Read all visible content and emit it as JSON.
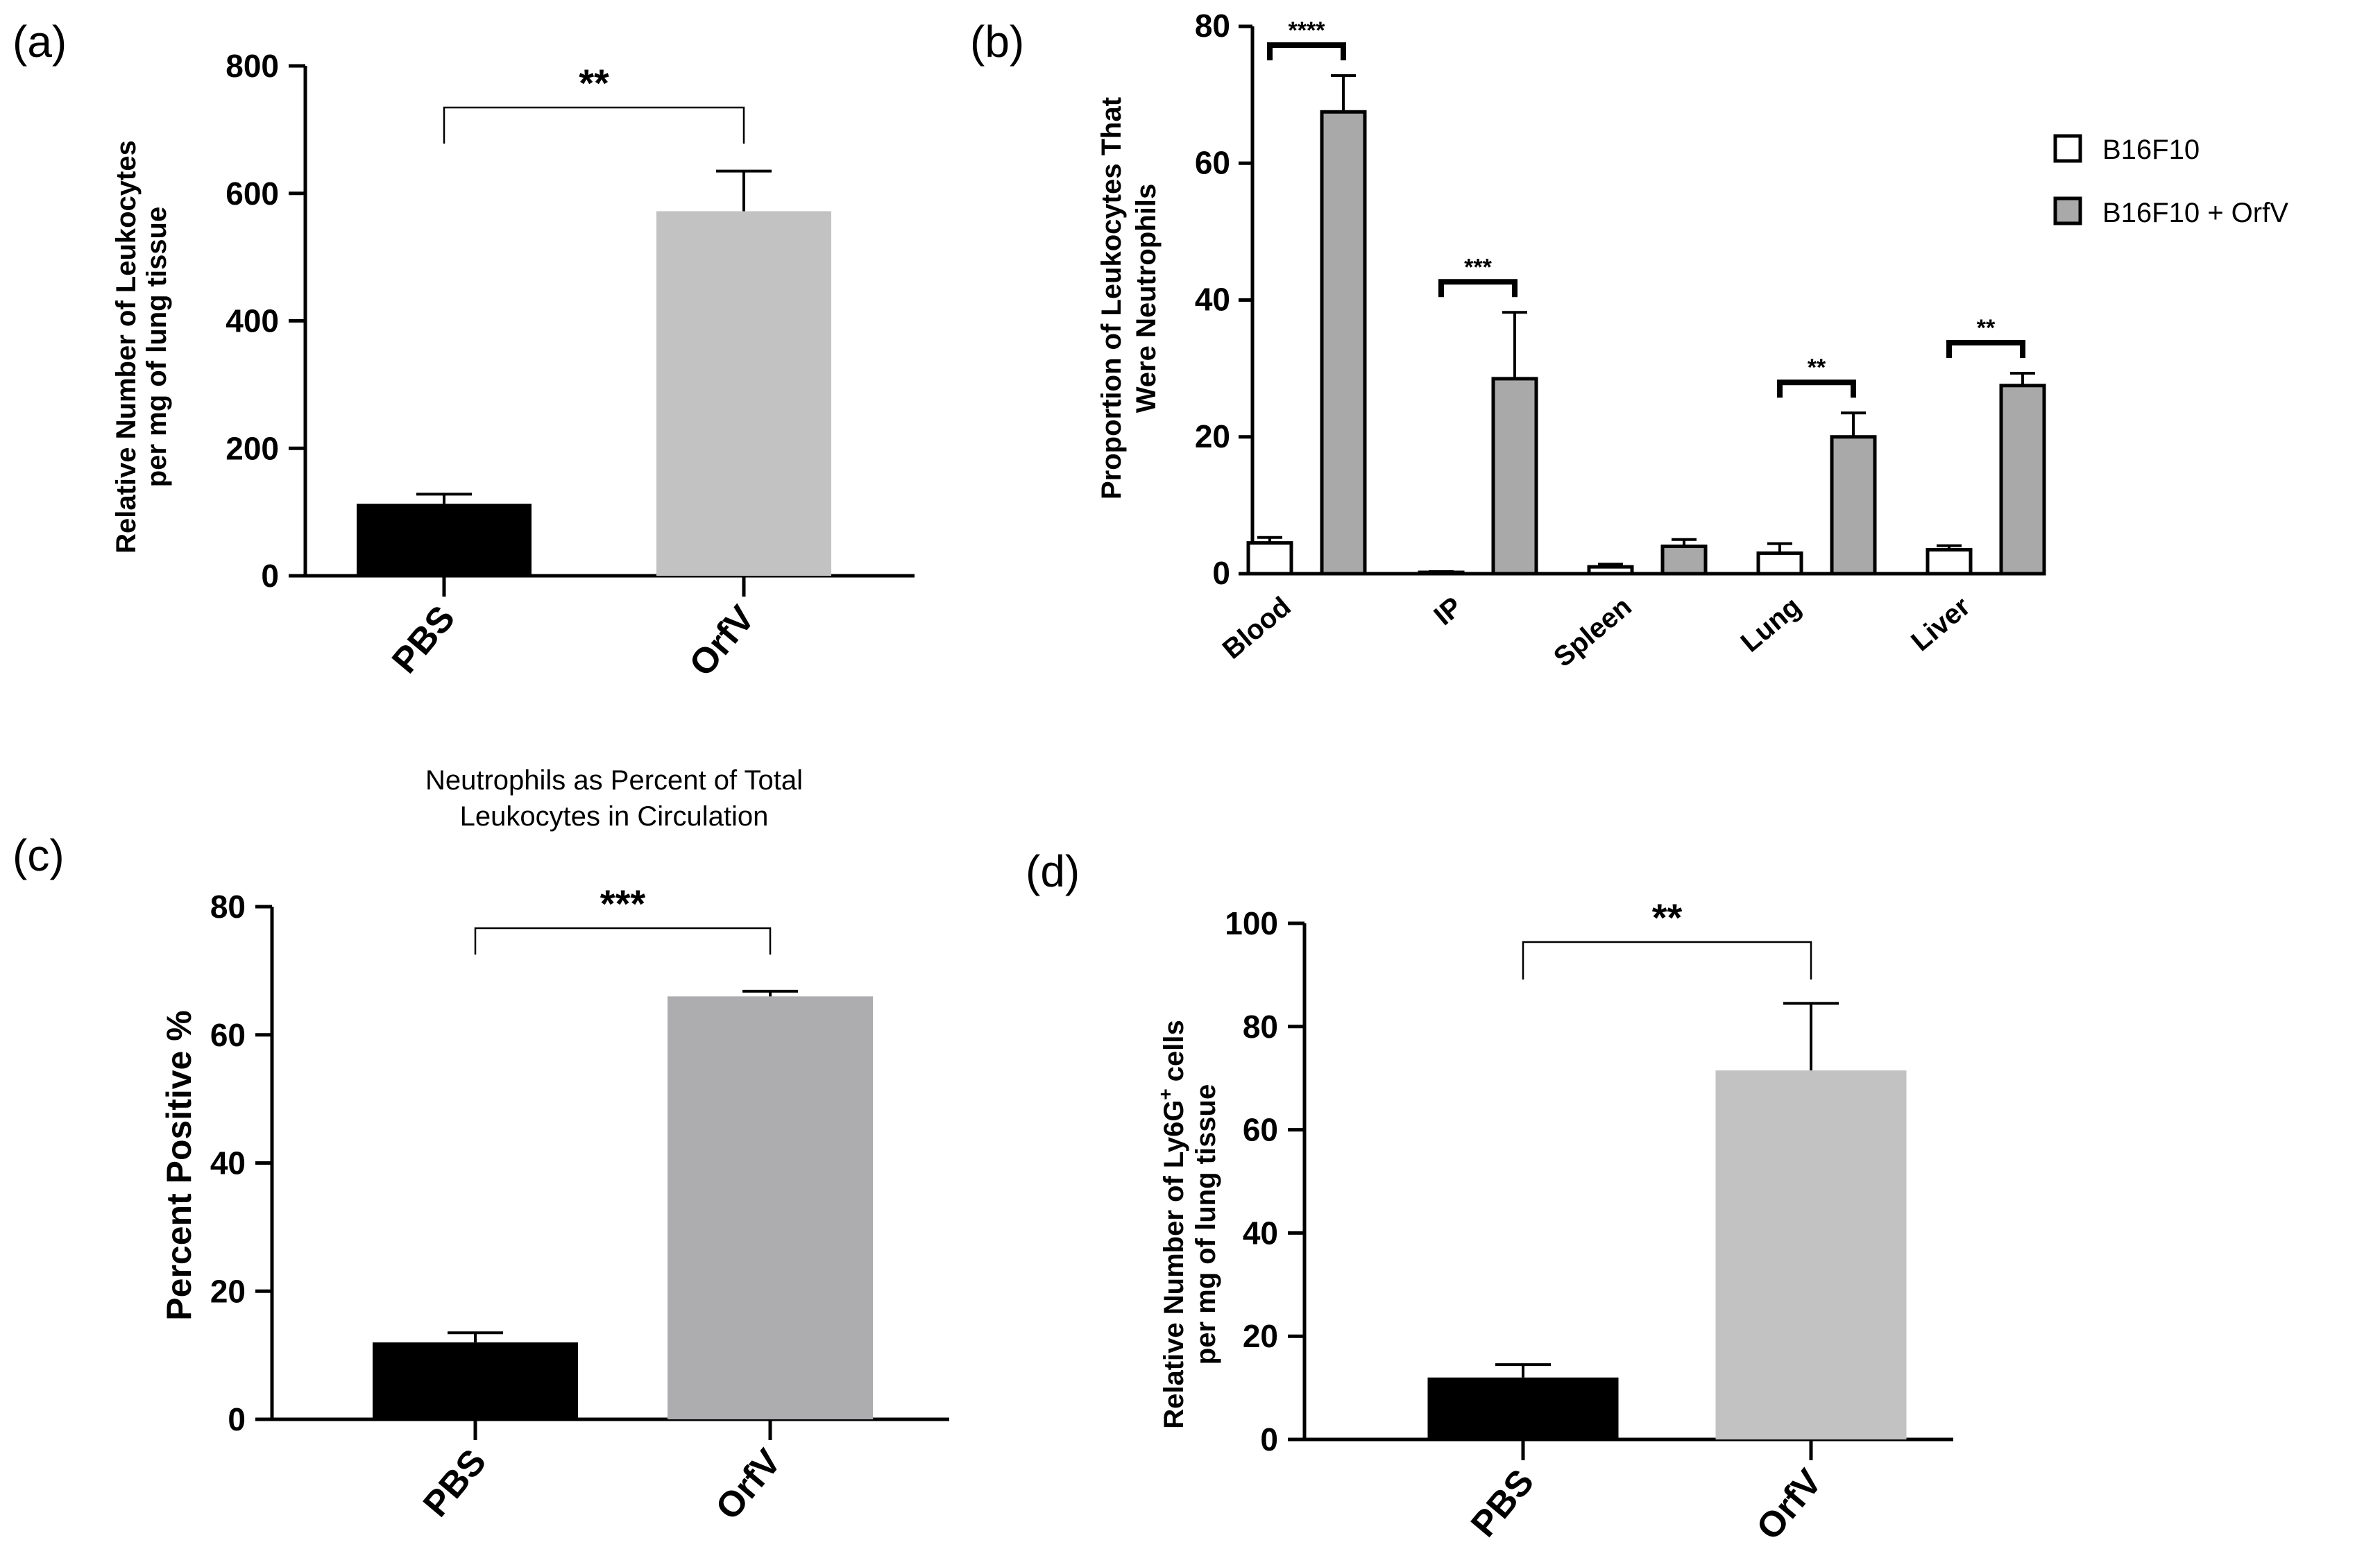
{
  "chart_data": [
    {
      "id": "a",
      "panel_label": "(a)",
      "type": "bar",
      "title": "",
      "categories": [
        "PBS",
        "OrfV"
      ],
      "values": [
        113,
        572
      ],
      "errors": [
        15,
        63
      ],
      "colors": [
        "#000000",
        "#c2c2c2"
      ],
      "ylabel_lines": [
        "Relative Number of Leukocytes",
        "per mg of lung tissue"
      ],
      "ylim": [
        0,
        800
      ],
      "yticks": [
        "0",
        "200",
        "400",
        "600",
        "800"
      ],
      "significance": "**"
    },
    {
      "id": "b",
      "panel_label": "(b)",
      "type": "bar",
      "categories": [
        "Blood",
        "IP",
        "Spleen",
        "Lung",
        "Liver"
      ],
      "series": [
        {
          "name": "B16F10",
          "values": [
            4.5,
            0.2,
            1.0,
            3.0,
            3.5
          ],
          "errors": [
            0.8,
            0.1,
            0.4,
            1.4,
            0.6
          ],
          "color": "#ffffff"
        },
        {
          "name": "B16F10 + OrfV",
          "values": [
            67.5,
            28.5,
            4.0,
            20.0,
            27.5
          ],
          "errors": [
            5.3,
            9.7,
            1.0,
            3.5,
            1.8
          ],
          "color": "#a9a9a9"
        }
      ],
      "ylabel_lines": [
        "Proportion of Leukocytes That",
        "Were Neutrophils"
      ],
      "ylim": [
        0,
        80
      ],
      "yticks": [
        "0",
        "20",
        "40",
        "60",
        "80"
      ],
      "significance": [
        "****",
        "***",
        "",
        "**",
        "**"
      ],
      "legend_position": "top-right"
    },
    {
      "id": "c",
      "panel_label": "(c)",
      "type": "bar",
      "title_lines": [
        "Neutrophils as Percent of Total",
        "Leukocytes in Circulation"
      ],
      "categories": [
        "PBS",
        "OrfV"
      ],
      "values": [
        12,
        66
      ],
      "errors": [
        1.5,
        0.8
      ],
      "colors": [
        "#000000",
        "#adadb0"
      ],
      "ylabel": "Percent Positive %",
      "ylim": [
        0,
        80
      ],
      "yticks": [
        "0",
        "20",
        "40",
        "60",
        "80"
      ],
      "significance": "***"
    },
    {
      "id": "d",
      "panel_label": "(d)",
      "type": "bar",
      "title": "",
      "categories": [
        "PBS",
        "OrfV"
      ],
      "values": [
        12,
        71.5
      ],
      "errors": [
        2.5,
        13
      ],
      "colors": [
        "#000000",
        "#c2c2c2"
      ],
      "ylabel_lines": [
        "Relative Number of Ly6G",
        "cells",
        "per mg of lung tissue"
      ],
      "ylabel_superscript": "+",
      "ylim": [
        0,
        100
      ],
      "yticks": [
        "0",
        "20",
        "40",
        "60",
        "80",
        "100"
      ],
      "significance": "**"
    }
  ]
}
